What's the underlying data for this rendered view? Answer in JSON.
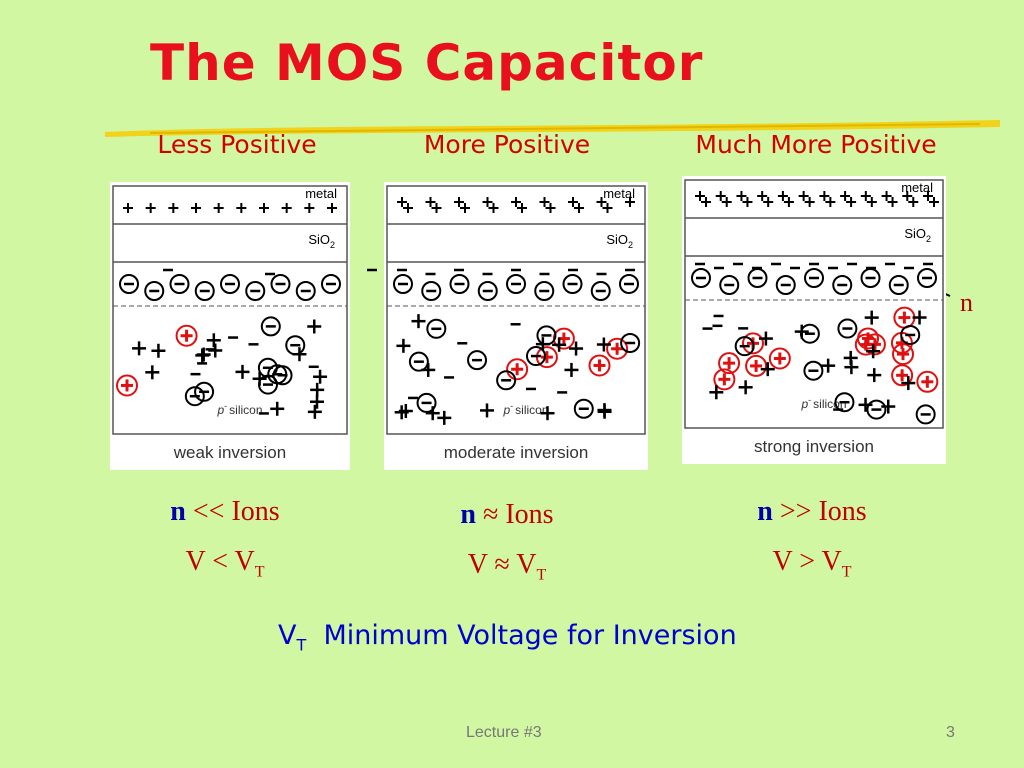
{
  "title": "The MOS Capacitor",
  "columns": [
    {
      "heading": "Less Positive",
      "metal": "metal",
      "oxide": {
        "base": "SiO",
        "sub": "2"
      },
      "substrate": {
        "base": "p",
        "sup": "-",
        "rest": "silicon"
      },
      "caption": "weak inversion",
      "relation": {
        "left": "n",
        "op": "<<",
        "right": "Ions"
      },
      "voltage": {
        "left": "V",
        "op": "<",
        "base": "V",
        "sub": "T"
      }
    },
    {
      "heading": "More Positive",
      "metal": "metal",
      "oxide": {
        "base": "SiO",
        "sub": "2"
      },
      "substrate": {
        "base": "p",
        "sup": "-",
        "rest": "silicon"
      },
      "caption": "moderate inversion",
      "relation": {
        "left": "n",
        "op": "≈",
        "right": "Ions"
      },
      "voltage": {
        "left": "V",
        "op": "≈",
        "base": "V",
        "sub": "T"
      }
    },
    {
      "heading": "Much More  Positive",
      "metal": "metal",
      "oxide": {
        "base": "SiO",
        "sub": "2"
      },
      "substrate": {
        "base": "p",
        "sup": "-",
        "rest": "silicon"
      },
      "caption": "strong inversion",
      "relation": {
        "left": "n",
        "op": ">>",
        "right": "Ions"
      },
      "voltage": {
        "left": "V",
        "op": ">",
        "base": "V",
        "sub": "T"
      }
    }
  ],
  "n_label": "n",
  "footnote": {
    "base": "V",
    "sub": "T",
    "text": "Minimum Voltage for Inversion"
  },
  "footer": {
    "lecture": "Lecture #3",
    "page": "3"
  }
}
